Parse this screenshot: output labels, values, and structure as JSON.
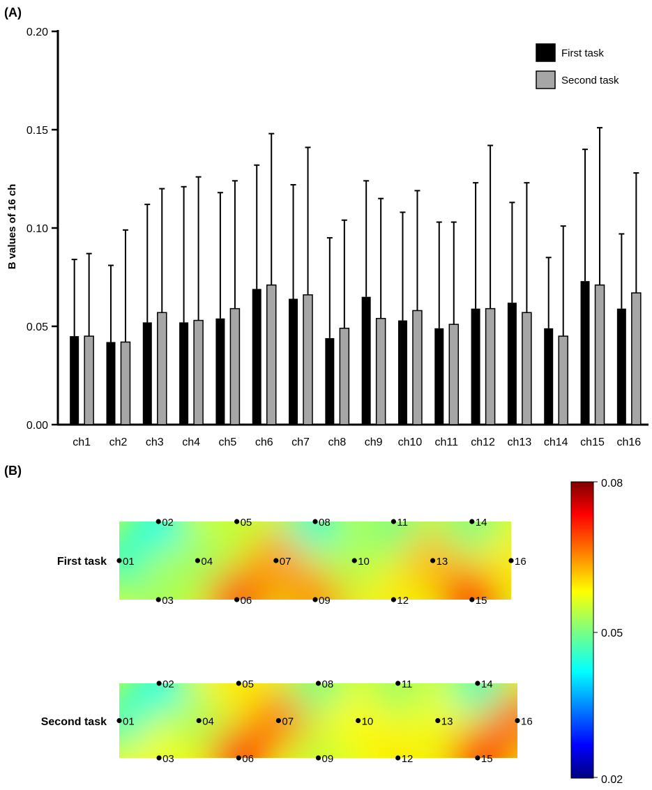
{
  "panels": {
    "a_label": "(A)",
    "b_label": "(B)"
  },
  "chart_data": [
    {
      "type": "bar",
      "title": "",
      "xlabel": "",
      "ylabel": "B values of 16 ch",
      "ylim": [
        0,
        0.2
      ],
      "yticks": [
        "0.00",
        "0.05",
        "0.10",
        "0.15",
        "0.20"
      ],
      "categories": [
        "ch1",
        "ch2",
        "ch3",
        "ch4",
        "ch5",
        "ch6",
        "ch7",
        "ch8",
        "ch9",
        "ch10",
        "ch11",
        "ch12",
        "ch13",
        "ch14",
        "ch15",
        "ch16"
      ],
      "series": [
        {
          "name": "First task",
          "color": "#000000",
          "values": [
            0.045,
            0.042,
            0.052,
            0.052,
            0.054,
            0.069,
            0.064,
            0.044,
            0.065,
            0.053,
            0.049,
            0.059,
            0.062,
            0.049,
            0.073,
            0.059
          ],
          "error_upper": [
            0.084,
            0.081,
            0.112,
            0.121,
            0.118,
            0.132,
            0.122,
            0.095,
            0.124,
            0.108,
            0.103,
            0.123,
            0.113,
            0.085,
            0.14,
            0.097
          ]
        },
        {
          "name": "Second task",
          "color": "#a6a6a6",
          "values": [
            0.045,
            0.042,
            0.057,
            0.053,
            0.059,
            0.071,
            0.066,
            0.049,
            0.054,
            0.058,
            0.051,
            0.059,
            0.057,
            0.045,
            0.071,
            0.067
          ],
          "error_upper": [
            0.087,
            0.099,
            0.12,
            0.126,
            0.124,
            0.148,
            0.141,
            0.104,
            0.115,
            0.119,
            0.103,
            0.142,
            0.123,
            0.101,
            0.151,
            0.128
          ]
        }
      ],
      "legend": "top-right"
    },
    {
      "type": "heatmap",
      "rows": [
        {
          "name": "First task",
          "channel_labels": [
            "01",
            "02",
            "03",
            "04",
            "05",
            "06",
            "07",
            "08",
            "09",
            "10",
            "11",
            "12",
            "13",
            "14",
            "15",
            "16"
          ],
          "values": [
            0.045,
            0.042,
            0.052,
            0.052,
            0.054,
            0.069,
            0.064,
            0.044,
            0.065,
            0.053,
            0.049,
            0.059,
            0.062,
            0.049,
            0.073,
            0.059
          ]
        },
        {
          "name": "Second task",
          "channel_labels": [
            "01",
            "02",
            "03",
            "04",
            "05",
            "06",
            "07",
            "08",
            "09",
            "10",
            "11",
            "12",
            "13",
            "14",
            "15",
            "16"
          ],
          "values": [
            0.045,
            0.042,
            0.057,
            0.053,
            0.059,
            0.071,
            0.066,
            0.049,
            0.054,
            0.058,
            0.051,
            0.059,
            0.057,
            0.045,
            0.071,
            0.067
          ]
        }
      ],
      "colorbar": {
        "min": 0.02,
        "max": 0.08,
        "labels": [
          "0.08",
          "0.05",
          "0.02"
        ]
      }
    }
  ]
}
